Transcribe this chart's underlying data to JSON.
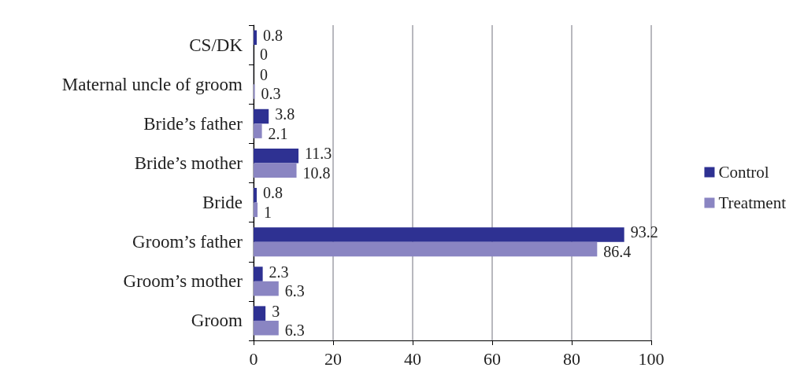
{
  "chart_data": {
    "type": "bar",
    "orientation": "horizontal",
    "categories": [
      "CS/DK",
      "Maternal uncle of groom",
      "Bride’s father",
      "Bride’s mother",
      "Bride",
      "Groom’s father",
      "Groom’s mother",
      "Groom"
    ],
    "series": [
      {
        "name": "Control",
        "color": "#2e3192",
        "values": [
          0.8,
          0,
          3.8,
          11.3,
          0.8,
          93.2,
          2.3,
          3
        ]
      },
      {
        "name": "Treatment",
        "color": "#8a85c2",
        "values": [
          0,
          0.3,
          2.1,
          10.8,
          1,
          86.4,
          6.3,
          6.3
        ]
      }
    ],
    "xlim": [
      0,
      100
    ],
    "xticks": [
      0,
      20,
      40,
      60,
      80,
      100
    ],
    "grid": "x",
    "legend": "right",
    "data_labels": true
  }
}
